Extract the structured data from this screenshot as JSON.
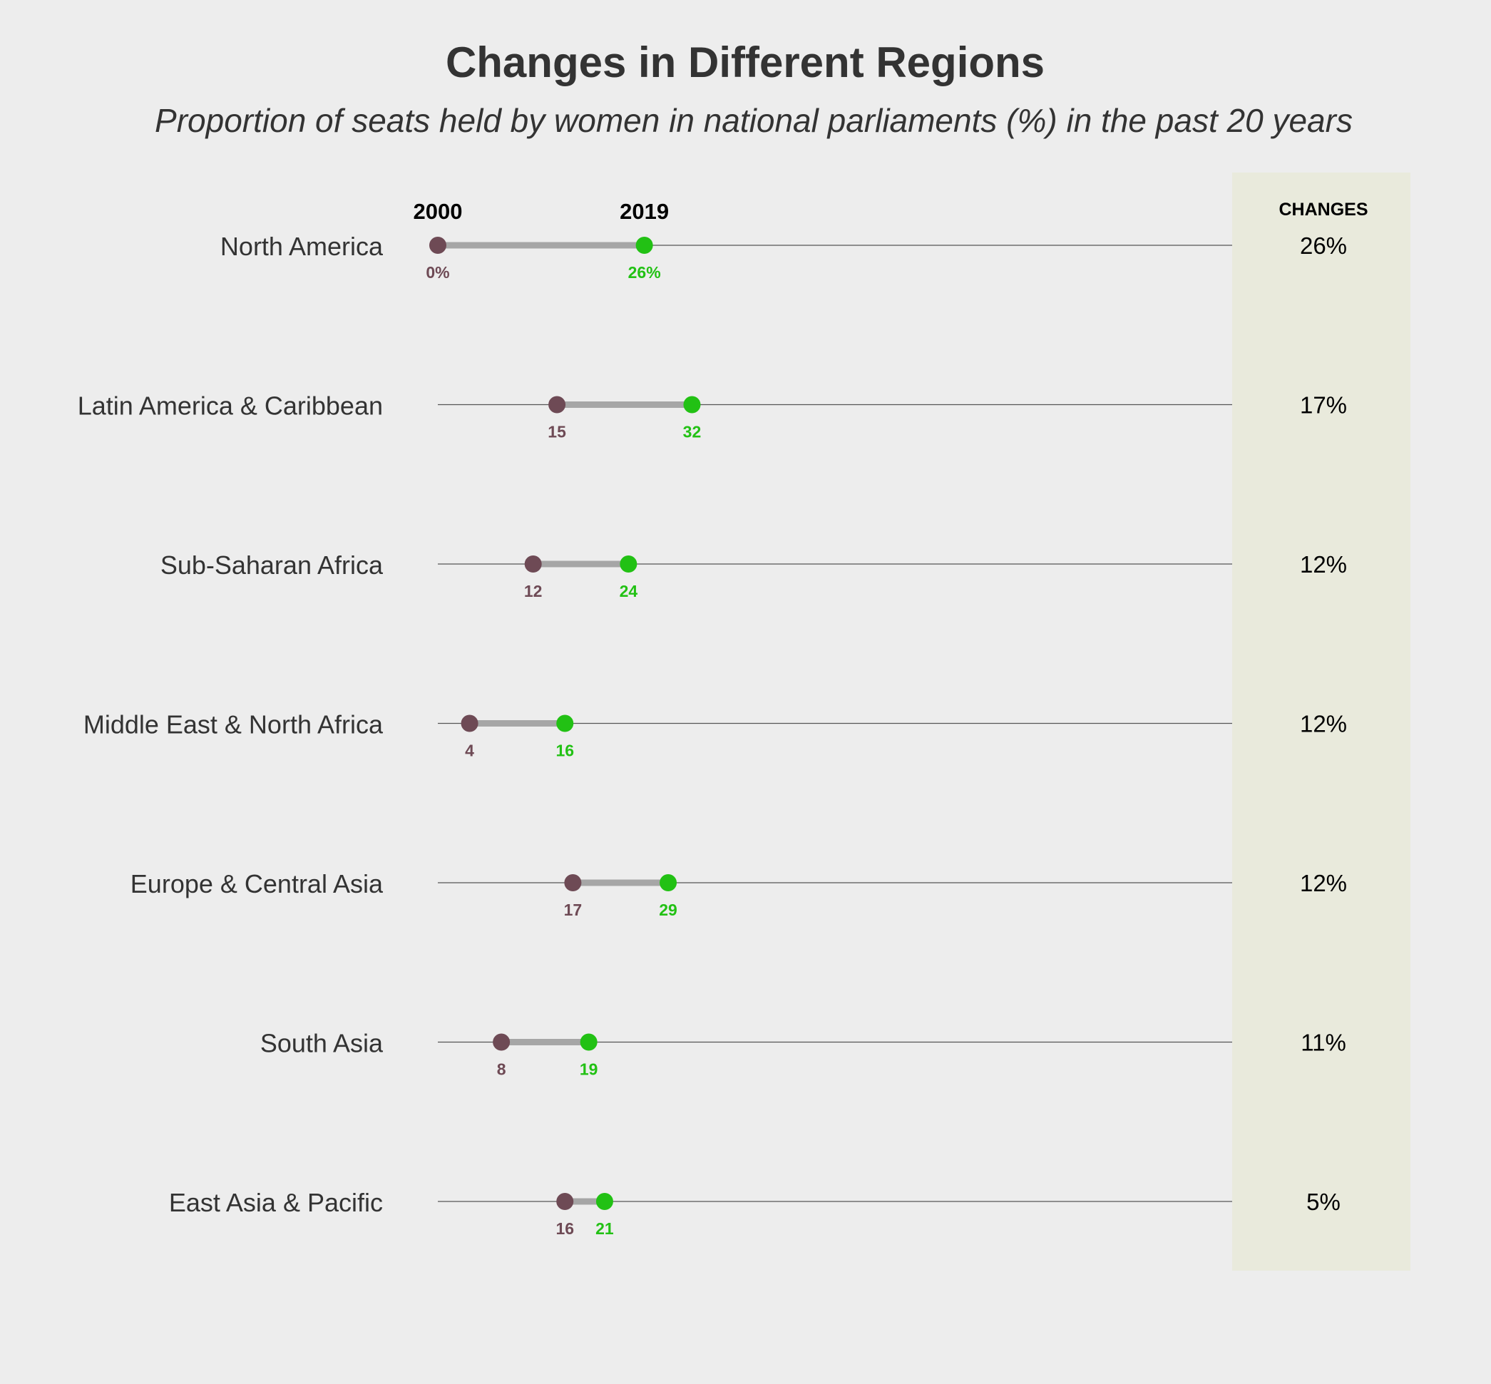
{
  "chart_data": {
    "type": "dumbbell",
    "title": "Changes in Different Regions",
    "subtitle": "Proportion of seats held by women in national parliaments (%) in the past 20 years",
    "series_labels": {
      "start": "2000",
      "end": "2019"
    },
    "changes_header": "CHANGES",
    "xlim": [
      0,
      100
    ],
    "colors": {
      "start": "#6e4a55",
      "end": "#22c114",
      "connector": "#a6a6a6",
      "baseline": "#555555",
      "changes_panel": "#e9eadc",
      "background": "#ededed"
    },
    "rows": [
      {
        "region": "North America",
        "start": 0,
        "end": 26,
        "start_label": "0%",
        "end_label": "26%",
        "change": "26%"
      },
      {
        "region": "Latin America & Caribbean",
        "start": 15,
        "end": 32,
        "start_label": "15",
        "end_label": "32",
        "change": "17%"
      },
      {
        "region": "Sub-Saharan Africa",
        "start": 12,
        "end": 24,
        "start_label": "12",
        "end_label": "24",
        "change": "12%"
      },
      {
        "region": "Middle East & North Africa",
        "start": 4,
        "end": 16,
        "start_label": "4",
        "end_label": "16",
        "change": "12%"
      },
      {
        "region": "Europe & Central Asia",
        "start": 17,
        "end": 29,
        "start_label": "17",
        "end_label": "29",
        "change": "12%"
      },
      {
        "region": "South Asia",
        "start": 8,
        "end": 19,
        "start_label": "8",
        "end_label": "19",
        "change": "11%"
      },
      {
        "region": "East Asia & Pacific",
        "start": 16,
        "end": 21,
        "start_label": "16",
        "end_label": "21",
        "change": "5%"
      }
    ]
  }
}
